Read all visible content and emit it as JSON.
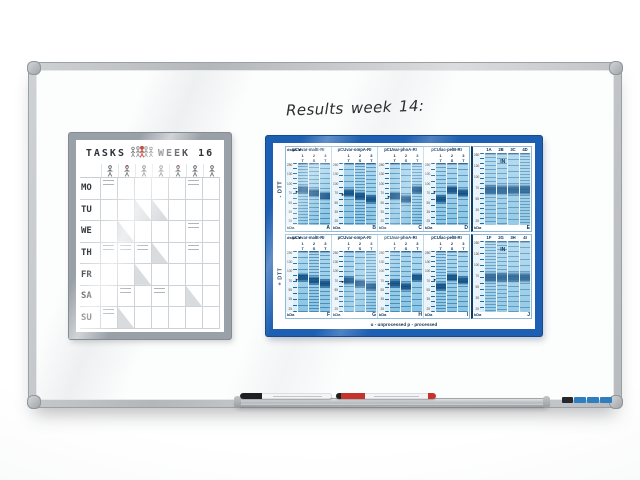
{
  "handwriting": {
    "text": "Results week 14:"
  },
  "calendar": {
    "title": "TASKS",
    "week_label": "WEEK 16",
    "days": [
      "MO",
      "TU",
      "WE",
      "TH",
      "FR",
      "SA",
      "SU"
    ],
    "task_columns": 7,
    "header_icons": [
      "stick-figure-icon",
      "stick-figure-icon",
      "stick-figure-icon",
      "stick-figure-icon",
      "stick-figure-icon",
      "stick-figure-icon",
      "stick-figure-icon"
    ],
    "marks": [
      {
        "day": "MO",
        "col": 0,
        "type": "note"
      },
      {
        "day": "MO",
        "col": 5,
        "type": "note"
      },
      {
        "day": "TU",
        "col": 2,
        "type": "triangle"
      },
      {
        "day": "TU",
        "col": 3,
        "type": "triangle"
      },
      {
        "day": "WE",
        "col": 1,
        "type": "triangle"
      },
      {
        "day": "WE",
        "col": 5,
        "type": "note"
      },
      {
        "day": "TH",
        "col": 0,
        "type": "note"
      },
      {
        "day": "TH",
        "col": 1,
        "type": "note"
      },
      {
        "day": "TH",
        "col": 2,
        "type": "note"
      },
      {
        "day": "TH",
        "col": 3,
        "type": "triangle"
      },
      {
        "day": "TH",
        "col": 5,
        "type": "note"
      },
      {
        "day": "FR",
        "col": 2,
        "type": "triangle"
      },
      {
        "day": "SA",
        "col": 1,
        "type": "note"
      },
      {
        "day": "SA",
        "col": 3,
        "type": "note"
      },
      {
        "day": "SA",
        "col": 5,
        "type": "triangle"
      },
      {
        "day": "SU",
        "col": 0,
        "type": "note"
      },
      {
        "day": "SU",
        "col": 1,
        "type": "triangle"
      }
    ]
  },
  "poster": {
    "frame_color": "#1d5fb2",
    "arrow_label": "dsbA ►",
    "lane_numbers": [
      "1",
      "2",
      "3"
    ],
    "lane_types": [
      "T",
      "S",
      "T"
    ],
    "ladder_values": [
      "250",
      "130",
      "100",
      "70",
      "55",
      "35",
      "25"
    ],
    "kda_label": "kDa",
    "in_label": "IN",
    "caption": "u - unprocessed   p - processed",
    "panels": [
      {
        "dtt": "- DTT",
        "groups": [
          {
            "name": "pCUvar-malE-RI",
            "letter": "A"
          },
          {
            "name": "pCUvar-ompA-RI",
            "letter": "B"
          },
          {
            "name": "pCUvar-phoA-RI",
            "letter": "C"
          },
          {
            "name": "pCUlac-pelB-RI",
            "letter": "D"
          }
        ],
        "right_header": [
          "1A",
          "2B",
          "3C",
          "4D"
        ],
        "right_letter": "E"
      },
      {
        "dtt": "+ DTT",
        "groups": [
          {
            "name": "pCUvar-malE-RI",
            "letter": "F"
          },
          {
            "name": "pCUvar-ompA-RI",
            "letter": "G"
          },
          {
            "name": "pCUvar-phoA-RI",
            "letter": "H"
          },
          {
            "name": "pCUlac-pelB-RI",
            "letter": "I"
          }
        ],
        "right_header": [
          "1F",
          "2G",
          "3H",
          "4I"
        ],
        "right_letter": "J"
      }
    ]
  },
  "tray": {
    "markers": [
      {
        "name": "whiteboard-marker-black",
        "cap_color": "#1f1f21",
        "body_color": "#f4f4f4"
      },
      {
        "name": "whiteboard-marker-red",
        "cap_color": "#c4332c",
        "body_color": "#f4f4f4"
      }
    ]
  },
  "brand_sticker": {
    "segment_colors": [
      "#26292c",
      "#2f7fc0",
      "#2f7fc0",
      "#2f7fc0"
    ]
  }
}
